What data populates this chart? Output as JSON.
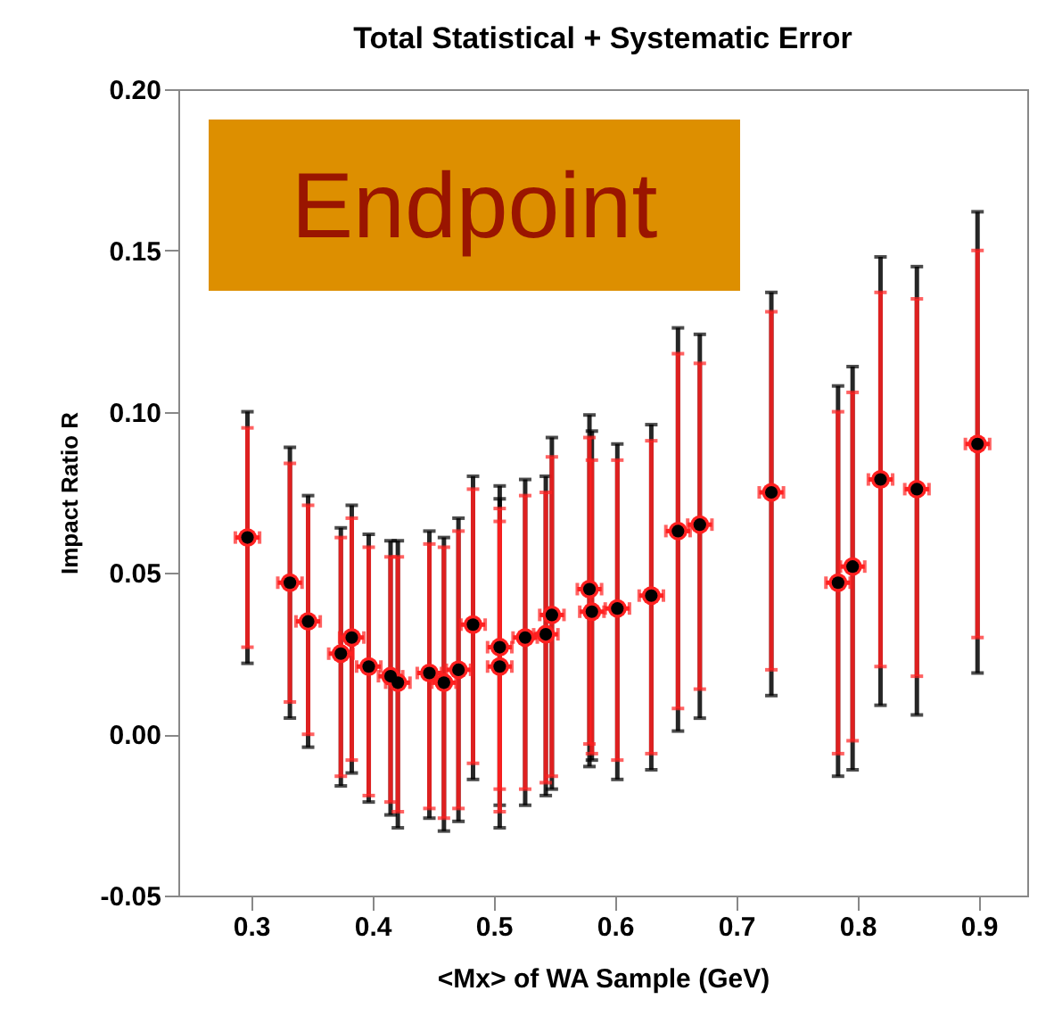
{
  "chart_data": {
    "type": "scatter",
    "title": "Total Statistical + Systematic Error",
    "xlabel": "<Mx> of WA Sample (GeV)",
    "ylabel": "Impact Ratio R",
    "annotations": [
      "Endpoint"
    ],
    "xlim": [
      0.24,
      0.94
    ],
    "xticks": [
      0.3,
      0.4,
      0.5,
      0.6,
      0.7,
      0.8,
      0.9
    ],
    "ylim": [
      -0.05,
      0.2
    ],
    "yticks": [
      {
        "value": -0.05,
        "label": "-0.05"
      },
      {
        "value": 0,
        "label": "0.00"
      },
      {
        "value": 0.05,
        "label": "0.05"
      },
      {
        "value": 0.1,
        "label": "0.10"
      },
      {
        "value": 0.15,
        "label": "0.15"
      },
      {
        "value": 0.2,
        "label": "0.20"
      }
    ],
    "grid": false,
    "x": [
      0.297,
      0.332,
      0.347,
      0.374,
      0.383,
      0.397,
      0.415,
      0.421,
      0.447,
      0.459,
      0.471,
      0.483,
      0.505,
      0.505,
      0.526,
      0.543,
      0.548,
      0.579,
      0.581,
      0.602,
      0.63,
      0.652,
      0.67,
      0.729,
      0.784,
      0.796,
      0.819,
      0.849,
      0.899
    ],
    "series": [
      {
        "color": "#000000",
        "marker": "circle",
        "values": [
          0.061,
          0.047,
          0.035,
          0.025,
          0.03,
          0.021,
          0.018,
          0.016,
          0.019,
          0.016,
          0.02,
          0.034,
          0.027,
          0.021,
          0.03,
          0.031,
          0.037,
          0.045,
          0.038,
          0.039,
          0.043,
          0.063,
          0.065,
          0.075,
          0.047,
          0.052,
          0.079,
          0.076,
          0.09
        ],
        "errors": [
          [
            0.022,
            0.1
          ],
          [
            0.005,
            0.089
          ],
          [
            -0.004,
            0.074
          ],
          [
            -0.016,
            0.064
          ],
          [
            -0.012,
            0.071
          ],
          [
            -0.021,
            0.062
          ],
          [
            -0.025,
            0.06
          ],
          [
            -0.029,
            0.06
          ],
          [
            -0.026,
            0.063
          ],
          [
            -0.03,
            0.061
          ],
          [
            -0.027,
            0.067
          ],
          [
            -0.014,
            0.08
          ],
          [
            -0.022,
            0.077
          ],
          [
            -0.029,
            0.073
          ],
          [
            -0.022,
            0.079
          ],
          [
            -0.019,
            0.08
          ],
          [
            -0.017,
            0.092
          ],
          [
            -0.01,
            0.099
          ],
          [
            -0.008,
            0.094
          ],
          [
            -0.014,
            0.09
          ],
          [
            -0.011,
            0.096
          ],
          [
            0.001,
            0.126
          ],
          [
            0.005,
            0.124
          ],
          [
            0.012,
            0.137
          ],
          [
            -0.013,
            0.108
          ],
          [
            -0.011,
            0.114
          ],
          [
            0.009,
            0.148
          ],
          [
            0.006,
            0.145
          ],
          [
            0.019,
            0.162
          ]
        ]
      },
      {
        "color": "#ff2020",
        "marker": "circle",
        "values": [
          0.061,
          0.047,
          0.035,
          0.025,
          0.03,
          0.021,
          0.018,
          0.016,
          0.019,
          0.016,
          0.02,
          0.034,
          0.027,
          0.021,
          0.03,
          0.031,
          0.037,
          0.045,
          0.038,
          0.039,
          0.043,
          0.063,
          0.065,
          0.075,
          0.047,
          0.052,
          0.079,
          0.076,
          0.09
        ],
        "errors": [
          [
            0.027,
            0.095
          ],
          [
            0.01,
            0.084
          ],
          [
            0.0,
            0.071
          ],
          [
            -0.013,
            0.061
          ],
          [
            -0.008,
            0.067
          ],
          [
            -0.019,
            0.058
          ],
          [
            -0.021,
            0.055
          ],
          [
            -0.024,
            0.055
          ],
          [
            -0.023,
            0.059
          ],
          [
            -0.026,
            0.058
          ],
          [
            -0.023,
            0.063
          ],
          [
            -0.009,
            0.076
          ],
          [
            -0.017,
            0.07
          ],
          [
            -0.024,
            0.066
          ],
          [
            -0.017,
            0.074
          ],
          [
            -0.015,
            0.075
          ],
          [
            -0.013,
            0.086
          ],
          [
            -0.003,
            0.092
          ],
          [
            -0.006,
            0.085
          ],
          [
            -0.008,
            0.085
          ],
          [
            -0.006,
            0.091
          ],
          [
            0.008,
            0.118
          ],
          [
            0.014,
            0.115
          ],
          [
            0.02,
            0.131
          ],
          [
            -0.006,
            0.1
          ],
          [
            -0.002,
            0.106
          ],
          [
            0.021,
            0.137
          ],
          [
            0.018,
            0.135
          ],
          [
            0.03,
            0.15
          ]
        ],
        "xerrors": [
          0.01,
          0.01,
          0.01,
          0.01,
          0.01,
          0.01,
          0.01,
          0.01,
          0.01,
          0.01,
          0.01,
          0.01,
          0.01,
          0.01,
          0.01,
          0.01,
          0.01,
          0.01,
          0.01,
          0.01,
          0.01,
          0.01,
          0.01,
          0.01,
          0.01,
          0.01,
          0.01,
          0.01,
          0.01
        ]
      }
    ]
  }
}
